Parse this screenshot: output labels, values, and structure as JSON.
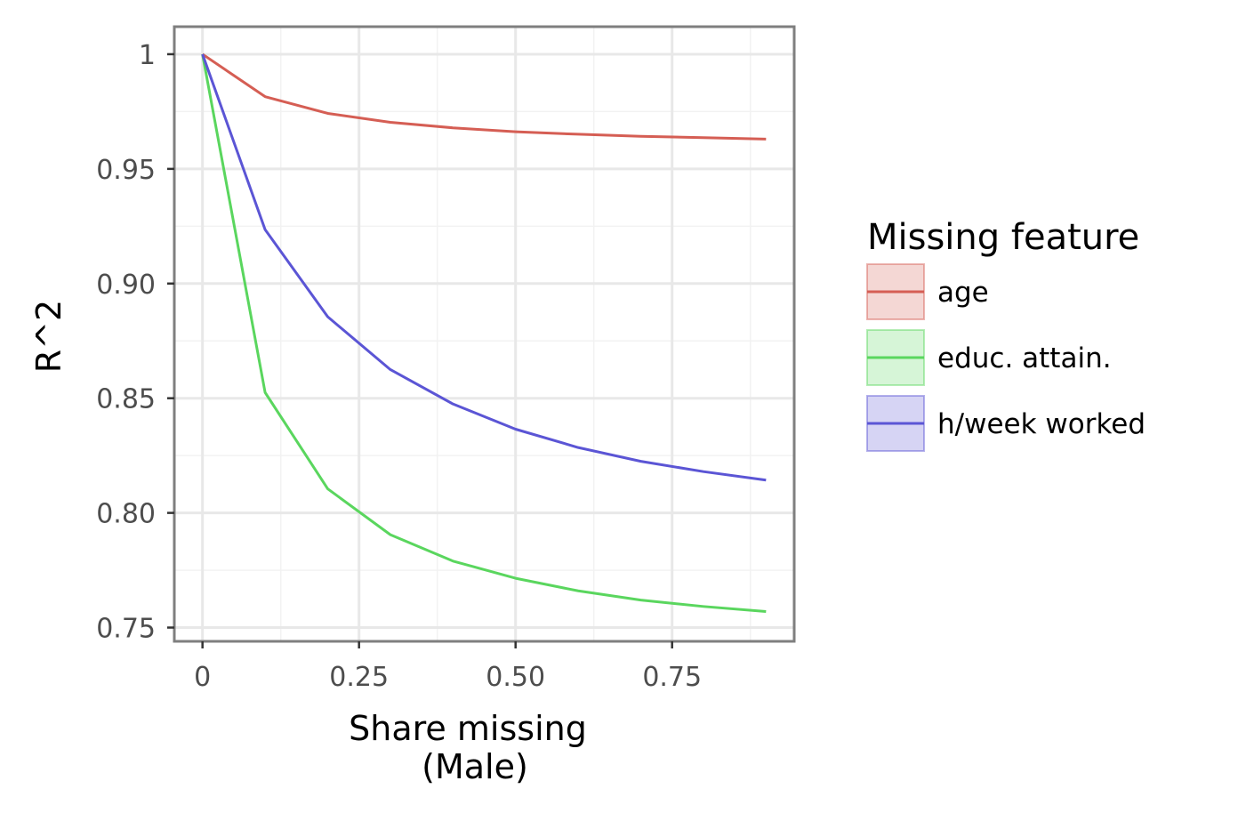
{
  "chart_data": {
    "type": "line",
    "xlabel": "Share missing",
    "xlabel_sub": "(Male)",
    "ylabel": "R^2",
    "xlim": [
      -0.045,
      0.945
    ],
    "ylim": [
      0.744,
      1.012
    ],
    "x_ticks": [
      0,
      0.25,
      0.5,
      0.75
    ],
    "x_tick_labels": [
      "0",
      "0.25",
      "0.50",
      "0.75"
    ],
    "y_ticks": [
      0.75,
      0.8,
      0.85,
      0.9,
      0.95,
      1.0
    ],
    "y_tick_labels": [
      "0.75",
      "0.80",
      "0.85",
      "0.90",
      "0.95",
      "1"
    ],
    "grid": true,
    "legend_title": "Missing feature",
    "legend_position": "right",
    "x": [
      0,
      0.1,
      0.2,
      0.3,
      0.4,
      0.5,
      0.6,
      0.7,
      0.8,
      0.9
    ],
    "series": [
      {
        "name": "age",
        "color": "#d55e54",
        "values": [
          1.0,
          0.9815,
          0.9742,
          0.9703,
          0.9679,
          0.9662,
          0.9651,
          0.9642,
          0.9636,
          0.963
        ]
      },
      {
        "name": "educ. attain.",
        "color": "#5ad65e",
        "values": [
          1.0,
          0.8525,
          0.8105,
          0.7905,
          0.779,
          0.7715,
          0.766,
          0.762,
          0.7592,
          0.757
        ]
      },
      {
        "name": "h/week worked",
        "color": "#5b55d5",
        "values": [
          1.0,
          0.9235,
          0.8855,
          0.8625,
          0.8475,
          0.8365,
          0.8285,
          0.8225,
          0.818,
          0.8143
        ]
      }
    ]
  }
}
